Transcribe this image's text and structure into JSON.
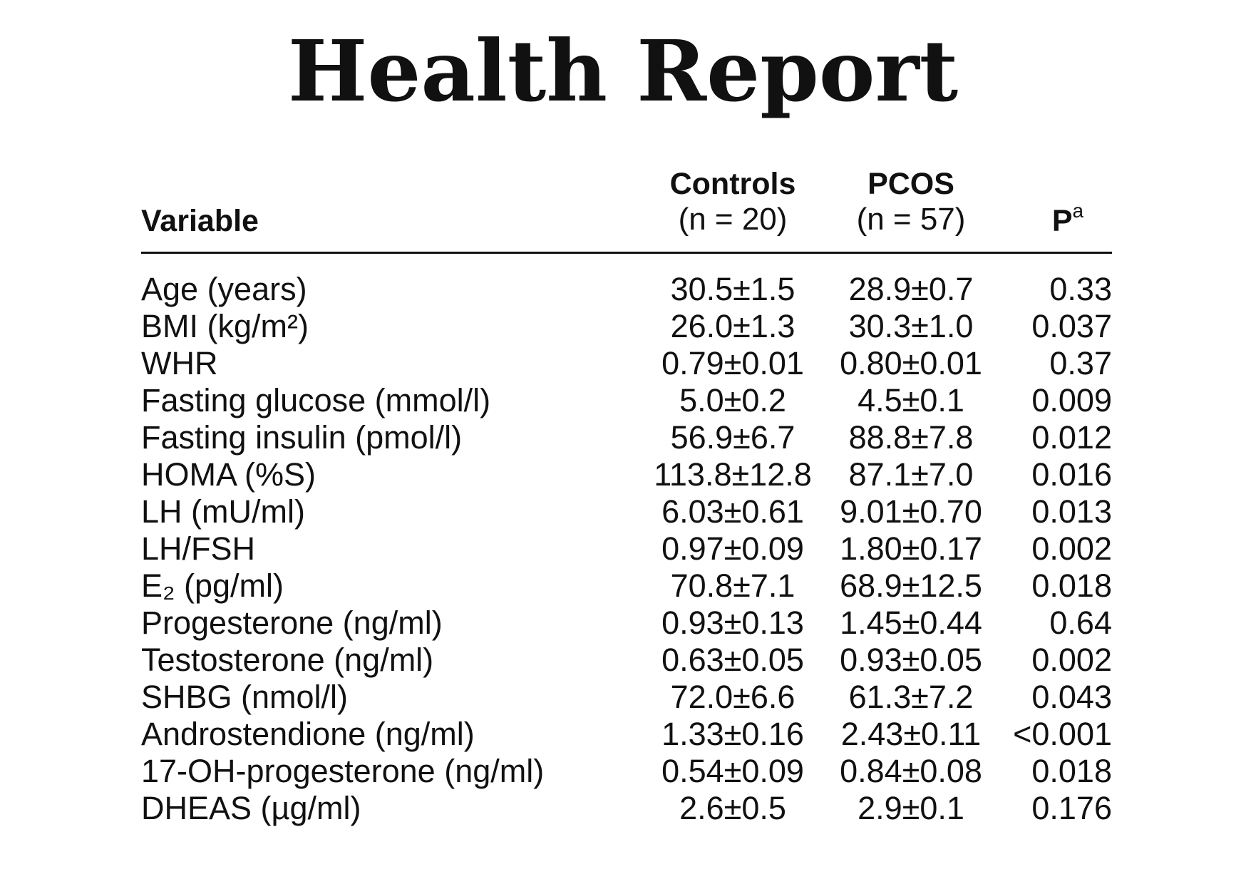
{
  "title": "Health Report",
  "table": {
    "headers": {
      "variable": "Variable",
      "controls": "Controls",
      "controls_n": "(n = 20)",
      "pcos": "PCOS",
      "pcos_n": "(n = 57)",
      "p": "P",
      "p_sup": "a"
    },
    "rows": [
      {
        "variable": "Age (years)",
        "controls": "30.5±1.5",
        "pcos": "28.9±0.7",
        "p": "0.33"
      },
      {
        "variable": "BMI (kg/m²)",
        "controls": "26.0±1.3",
        "pcos": "30.3±1.0",
        "p": "0.037"
      },
      {
        "variable": "WHR",
        "controls": "0.79±0.01",
        "pcos": "0.80±0.01",
        "p": "0.37"
      },
      {
        "variable": "Fasting glucose (mmol/l)",
        "controls": "5.0±0.2",
        "pcos": "4.5±0.1",
        "p": "0.009"
      },
      {
        "variable": "Fasting insulin (pmol/l)",
        "controls": "56.9±6.7",
        "pcos": "88.8±7.8",
        "p": "0.012"
      },
      {
        "variable": "HOMA (%S)",
        "controls": "113.8±12.8",
        "pcos": "87.1±7.0",
        "p": "0.016"
      },
      {
        "variable": "LH (mU/ml)",
        "controls": "6.03±0.61",
        "pcos": "9.01±0.70",
        "p": "0.013"
      },
      {
        "variable": "LH/FSH",
        "controls": "0.97±0.09",
        "pcos": "1.80±0.17",
        "p": "0.002"
      },
      {
        "variable": "E₂ (pg/ml)",
        "controls": "70.8±7.1",
        "pcos": "68.9±12.5",
        "p": "0.018"
      },
      {
        "variable": "Progesterone (ng/ml)",
        "controls": "0.93±0.13",
        "pcos": "1.45±0.44",
        "p": "0.64"
      },
      {
        "variable": "Testosterone (ng/ml)",
        "controls": "0.63±0.05",
        "pcos": "0.93±0.05",
        "p": "0.002"
      },
      {
        "variable": "SHBG (nmol/l)",
        "controls": "72.0±6.6",
        "pcos": "61.3±7.2",
        "p": "0.043"
      },
      {
        "variable": "Androstendione (ng/ml)",
        "controls": "1.33±0.16",
        "pcos": "2.43±0.11",
        "p": "<0.001"
      },
      {
        "variable": "17-OH-progesterone (ng/ml)",
        "controls": "0.54±0.09",
        "pcos": "0.84±0.08",
        "p": "0.018"
      },
      {
        "variable": "DHEAS (µg/ml)",
        "controls": "2.6±0.5",
        "pcos": "2.9±0.1",
        "p": "0.176"
      }
    ]
  }
}
